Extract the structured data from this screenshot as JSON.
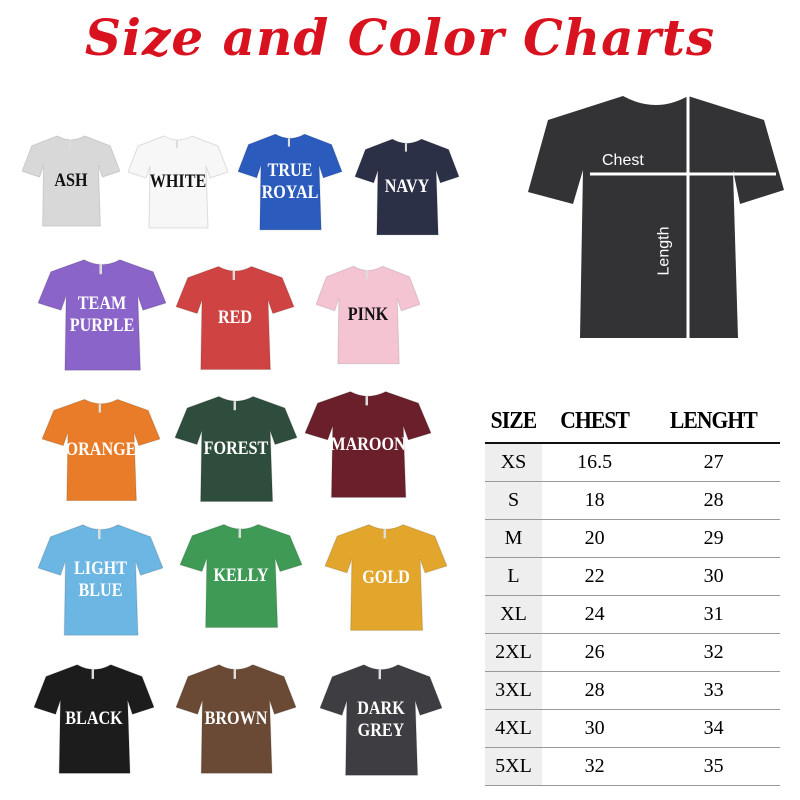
{
  "title": "Size and Color Charts",
  "colors": [
    {
      "label": "ASH",
      "fill": "#d8d8d8",
      "text": "#111"
    },
    {
      "label": "WHITE",
      "fill": "#f7f7f7",
      "text": "#111"
    },
    {
      "label": "TRUE\nROYAL",
      "fill": "#2b5bbd",
      "text": "#fff"
    },
    {
      "label": "NAVY",
      "fill": "#2b3047",
      "text": "#fff"
    },
    {
      "label": "TEAM\nPURPLE",
      "fill": "#8a64c8",
      "text": "#fff"
    },
    {
      "label": "RED",
      "fill": "#cf4443",
      "text": "#fff"
    },
    {
      "label": "PINK",
      "fill": "#f4c4d2",
      "text": "#111"
    },
    {
      "label": "ORANGE",
      "fill": "#e87c28",
      "text": "#fff"
    },
    {
      "label": "FOREST",
      "fill": "#2f4d3c",
      "text": "#fff"
    },
    {
      "label": "MAROON",
      "fill": "#6a1f2b",
      "text": "#fff"
    },
    {
      "label": "LIGHT\nBLUE",
      "fill": "#6cb6e4",
      "text": "#fff"
    },
    {
      "label": "KELLY",
      "fill": "#3f9a55",
      "text": "#fff"
    },
    {
      "label": "GOLD",
      "fill": "#e3a62c",
      "text": "#fff"
    },
    {
      "label": "BLACK",
      "fill": "#1c1c1c",
      "text": "#fff"
    },
    {
      "label": "BROWN",
      "fill": "#6b4a35",
      "text": "#fff"
    },
    {
      "label": "DARK\nGREY",
      "fill": "#3e3e42",
      "text": "#fff"
    }
  ],
  "measure_shirt": {
    "chest": "Chest",
    "length": "Length",
    "fill": "#333335"
  },
  "size_table": {
    "headers": [
      "SIZE",
      "CHEST",
      "LENGHT"
    ],
    "rows": [
      [
        "XS",
        "16.5",
        "27"
      ],
      [
        "S",
        "18",
        "28"
      ],
      [
        "M",
        "20",
        "29"
      ],
      [
        "L",
        "22",
        "30"
      ],
      [
        "XL",
        "24",
        "31"
      ],
      [
        "2XL",
        "26",
        "32"
      ],
      [
        "3XL",
        "28",
        "33"
      ],
      [
        "4XL",
        "30",
        "34"
      ],
      [
        "5XL",
        "32",
        "35"
      ]
    ]
  }
}
